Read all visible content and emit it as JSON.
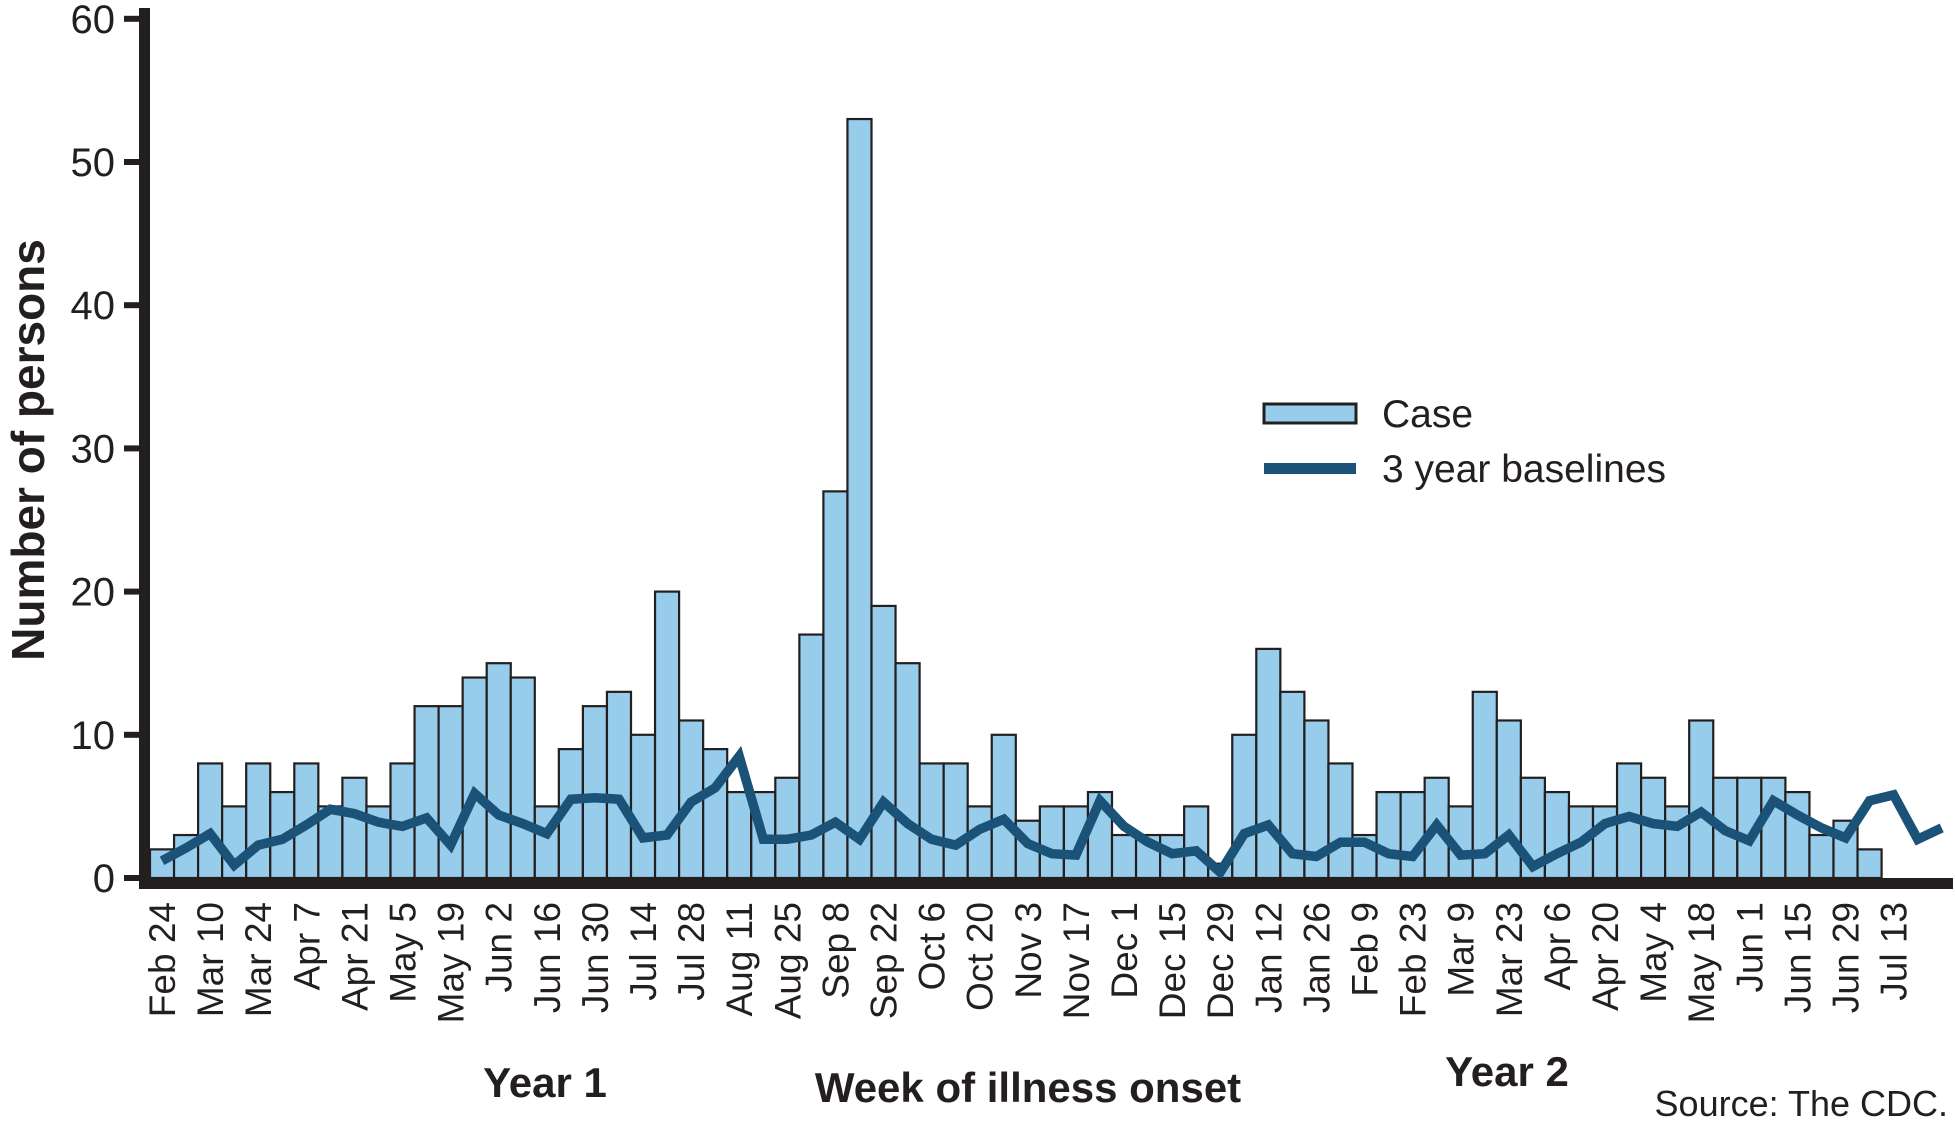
{
  "colors": {
    "bar_fill": "#97cdeb",
    "bar_border": "#231f20",
    "baseline_line": "#1a5278",
    "axis": "#231f20",
    "text": "#231f20"
  },
  "legend": {
    "position": "upper-right",
    "case_label": "Case",
    "baseline_label": "3 year baselines"
  },
  "footer": {
    "year1_label": "Year 1",
    "year2_label": "Year 2",
    "source": "Source: The CDC."
  },
  "chart_data": {
    "type": "bar",
    "title": "",
    "xlabel": "Week of illness onset",
    "ylabel": "Number of persons",
    "ylim": [
      0,
      60
    ],
    "yticks": [
      0,
      10,
      20,
      30,
      40,
      50,
      60
    ],
    "grid": false,
    "categories": [
      "Feb 24",
      "",
      "Mar 10",
      "",
      "Mar 24",
      "",
      "Apr 7",
      "",
      "Apr 21",
      "",
      "May 5",
      "",
      "May 19",
      "",
      "Jun 2",
      "",
      "Jun 16",
      "",
      "Jun 30",
      "",
      "Jul 14",
      "",
      "Jul 28",
      "",
      "Aug 11",
      "",
      "Aug 25",
      "",
      "Sep 8",
      "",
      "Sep 22",
      "",
      "Oct 6",
      "",
      "Oct 20",
      "",
      "Nov 3",
      "",
      "Nov 17",
      "",
      "Dec 1",
      "",
      "Dec 15",
      "",
      "Dec 29",
      "",
      "Jan 12",
      "",
      "Jan 26",
      "",
      "Feb 9",
      "",
      "Feb 23",
      "",
      "Mar 9",
      "",
      "Mar 23",
      "",
      "Apr 6",
      "",
      "Apr 20",
      "",
      "May 4",
      "",
      "May 18",
      "",
      "Jun 1",
      "",
      "Jun 15",
      "",
      "Jun 29",
      "",
      "Jul 13",
      "",
      ""
    ],
    "series": [
      {
        "name": "Case",
        "type": "bar",
        "values": [
          2,
          3,
          8,
          5,
          8,
          6,
          8,
          5,
          7,
          5,
          8,
          12,
          12,
          14,
          15,
          14,
          5,
          9,
          12,
          13,
          10,
          20,
          11,
          9,
          6,
          6,
          7,
          17,
          27,
          53,
          19,
          15,
          8,
          8,
          5,
          10,
          4,
          5,
          5,
          6,
          3,
          3,
          3,
          5,
          1,
          10,
          16,
          13,
          11,
          8,
          3,
          6,
          6,
          7,
          5,
          13,
          11,
          7,
          6,
          5,
          5,
          8,
          7,
          5,
          11,
          7,
          7,
          7,
          6,
          3,
          4,
          2,
          0,
          0,
          0
        ]
      },
      {
        "name": "3 year baselines",
        "type": "line",
        "values": [
          1.2,
          2.1,
          3.1,
          0.9,
          2.3,
          2.7,
          3.7,
          4.8,
          4.5,
          3.9,
          3.6,
          4.2,
          2.3,
          5.9,
          4.4,
          3.8,
          3.1,
          5.5,
          5.6,
          5.5,
          2.8,
          3.0,
          5.3,
          6.3,
          8.5,
          2.7,
          2.7,
          3.0,
          3.9,
          2.7,
          5.3,
          3.8,
          2.7,
          2.3,
          3.4,
          4.1,
          2.4,
          1.7,
          1.6,
          5.4,
          3.6,
          2.5,
          1.7,
          1.9,
          0.4,
          3.1,
          3.7,
          1.7,
          1.5,
          2.5,
          2.5,
          1.7,
          1.5,
          3.7,
          1.6,
          1.7,
          3.0,
          0.8,
          1.7,
          2.5,
          3.8,
          4.3,
          3.8,
          3.6,
          4.6,
          3.3,
          2.6,
          5.4,
          4.4,
          3.5,
          2.8,
          5.4,
          5.8,
          2.7,
          3.5
        ]
      }
    ],
    "legend_entries": [
      "Case",
      "3 year baselines"
    ],
    "axis_annotations": [
      "Year 1",
      "Year 2"
    ],
    "source": "Source: The CDC."
  }
}
